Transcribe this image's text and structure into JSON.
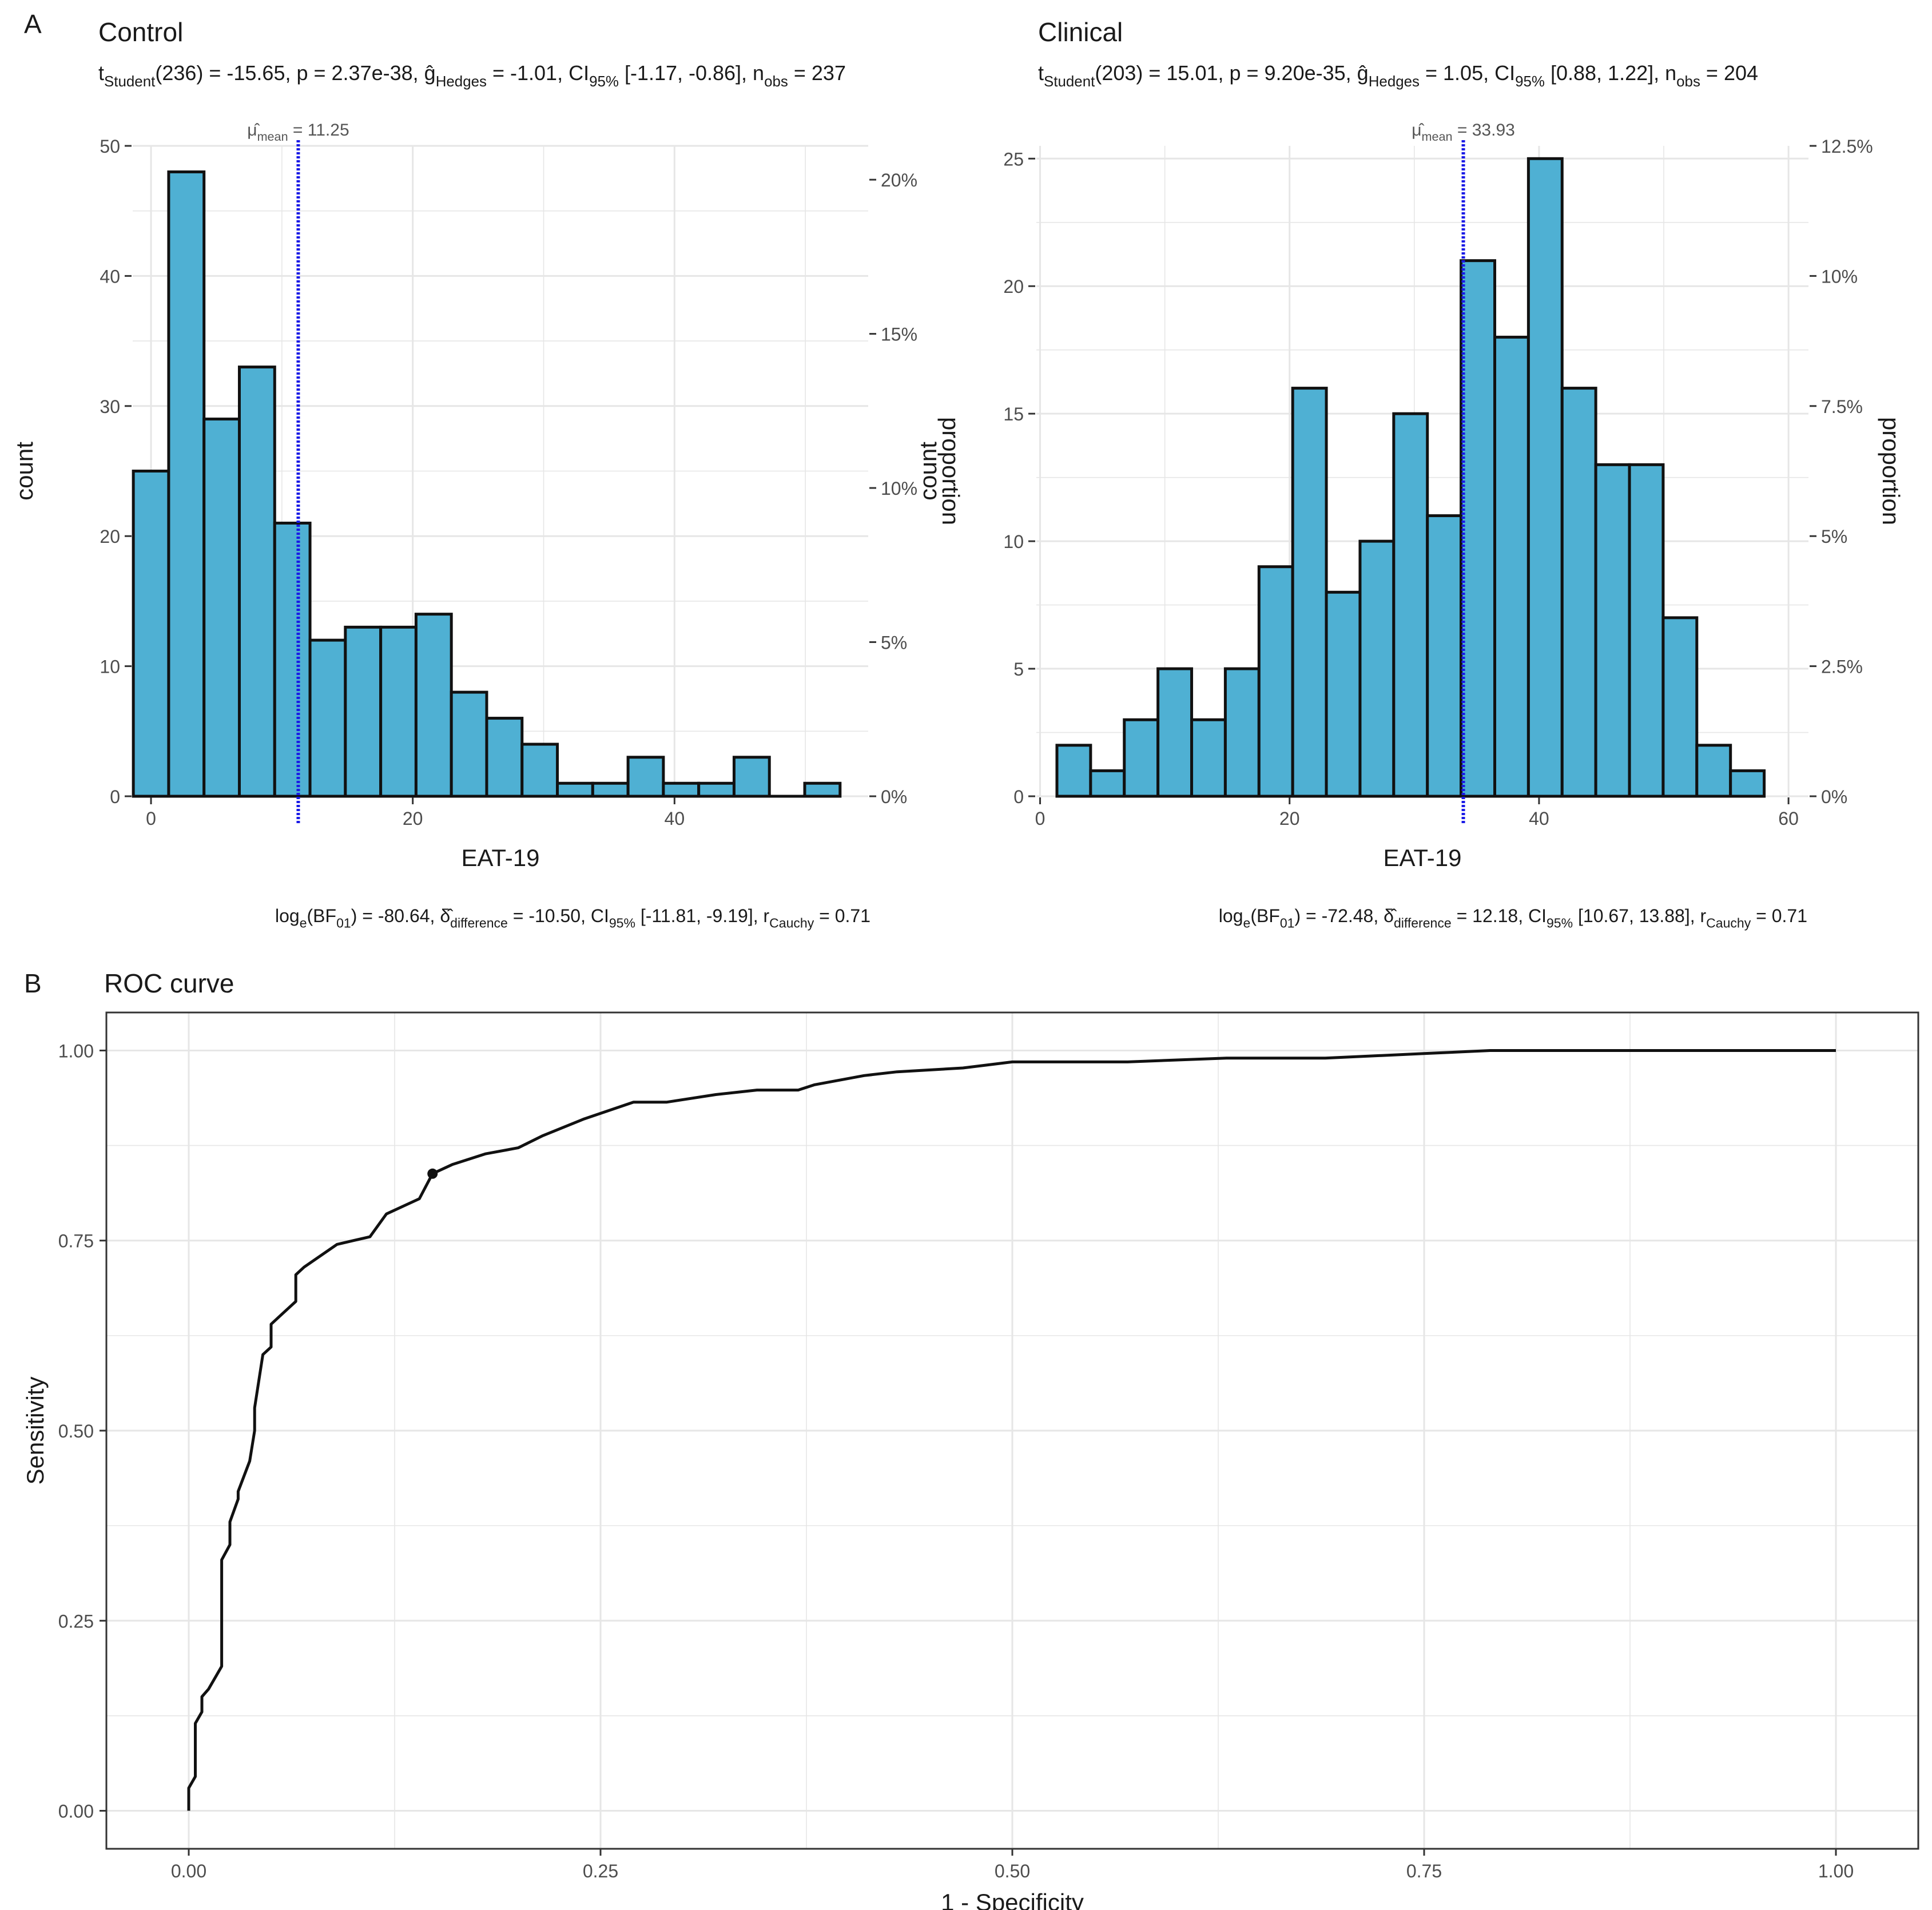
{
  "panel_a_tag": "A",
  "panel_b_tag": "B",
  "colors": {
    "bar_fill": "#4FB0D3",
    "bar_stroke": "#111111",
    "mean_line": "#1A1AE6",
    "grid": "#E6E6E6",
    "line": "#111111"
  },
  "chart_data": [
    {
      "type": "bar",
      "id": "control",
      "title": "Control",
      "subtitle": {
        "t": "Student",
        "df": "236",
        "t_value": "-15.65",
        "p": "2.37e-38",
        "g": "Hedges",
        "g_value": "-1.01",
        "ci": "95%",
        "ci_range": "[-1.17, -0.86]",
        "n": "obs",
        "n_value": "237"
      },
      "mean_label": {
        "sub": "mean",
        "value": "11.25"
      },
      "mean": 11.25,
      "xlabel": "EAT-19",
      "ylabel": "count",
      "y2label": "proportion",
      "xlim": [
        -1.4,
        54.8
      ],
      "ylim": [
        0,
        50
      ],
      "x_ticks": [
        "0",
        "20",
        "40"
      ],
      "x_tick_values": [
        0,
        20,
        40
      ],
      "y_ticks": [
        "0",
        "10",
        "20",
        "30",
        "40",
        "50"
      ],
      "y_tick_values": [
        0,
        10,
        20,
        30,
        40,
        50
      ],
      "y2_ticks": [
        "0%",
        "5%",
        "10%",
        "15%",
        "20%"
      ],
      "y2_tick_values": [
        0,
        0.05,
        0.1,
        0.15,
        0.2
      ],
      "n_total": 237,
      "bin_width": 2.7,
      "bin_centers": [
        0,
        2.7,
        5.4,
        8.1,
        10.8,
        13.5,
        16.2,
        18.9,
        21.6,
        24.3,
        27.0,
        29.7,
        32.4,
        35.1,
        37.8,
        40.5,
        43.2,
        45.9,
        48.6,
        51.3
      ],
      "values": [
        25,
        48,
        29,
        33,
        21,
        12,
        13,
        13,
        14,
        8,
        6,
        4,
        1,
        1,
        3,
        1,
        1,
        3,
        0,
        1
      ],
      "caption": {
        "bf": "-80.64",
        "delta": "-10.50",
        "ci": "[-11.81, -9.19]",
        "r": "0.71"
      }
    },
    {
      "type": "bar",
      "id": "clinical",
      "title": "Clinical",
      "subtitle": {
        "t": "Student",
        "df": "203",
        "t_value": "15.01",
        "p": "9.20e-35",
        "g": "Hedges",
        "g_value": "1.05",
        "ci": "95%",
        "ci_range": "[0.88, 1.22]",
        "n": "obs",
        "n_value": "204"
      },
      "mean_label": {
        "sub": "mean",
        "value": "33.93"
      },
      "mean": 33.93,
      "xlabel": "EAT-19",
      "ylabel": "count",
      "y2label": "proportion",
      "xlim": [
        -0.3,
        61.6
      ],
      "ylim": [
        0,
        25.5
      ],
      "x_ticks": [
        "0",
        "20",
        "40",
        "60"
      ],
      "x_tick_values": [
        0,
        20,
        40,
        60
      ],
      "y_ticks": [
        "0",
        "5",
        "10",
        "15",
        "20",
        "25"
      ],
      "y_tick_values": [
        0,
        5,
        10,
        15,
        20,
        25
      ],
      "y2_ticks": [
        "0%",
        "2.5%",
        "5%",
        "7.5%",
        "10%",
        "12.5%"
      ],
      "y2_tick_values": [
        0,
        0.025,
        0.05,
        0.075,
        0.1,
        0.125
      ],
      "n_total": 204,
      "bin_width": 2.7,
      "bin_centers": [
        2.7,
        5.4,
        8.1,
        10.8,
        13.5,
        16.2,
        18.9,
        21.6,
        24.3,
        27.0,
        29.7,
        32.4,
        35.1,
        37.8,
        40.5,
        43.2,
        45.9,
        48.6,
        51.3,
        54.0,
        56.7
      ],
      "values": [
        2,
        1,
        3,
        5,
        3,
        5,
        9,
        16,
        8,
        10,
        15,
        11,
        21,
        18,
        25,
        16,
        13,
        13,
        7,
        2,
        1
      ],
      "caption": {
        "bf": "-72.48",
        "delta": "12.18",
        "ci": "[10.67, 13.88]",
        "r": "0.71"
      }
    },
    {
      "type": "line",
      "id": "roc",
      "title": "ROC curve",
      "xlabel": "1 - Specificity",
      "ylabel": "Sensitivity",
      "xlim": [
        -0.05,
        1.05
      ],
      "ylim": [
        -0.05,
        1.05
      ],
      "x_ticks": [
        "0.00",
        "0.25",
        "0.50",
        "0.75",
        "1.00"
      ],
      "x_tick_values": [
        0,
        0.25,
        0.5,
        0.75,
        1.0
      ],
      "y_ticks": [
        "0.00",
        "0.25",
        "0.50",
        "0.75",
        "1.00"
      ],
      "y_tick_values": [
        0,
        0.25,
        0.5,
        0.75,
        1.0
      ],
      "x": [
        0.0,
        0.0,
        0.004,
        0.004,
        0.008,
        0.008,
        0.012,
        0.02,
        0.02,
        0.025,
        0.025,
        0.03,
        0.03,
        0.037,
        0.04,
        0.04,
        0.045,
        0.05,
        0.05,
        0.055,
        0.06,
        0.065,
        0.065,
        0.07,
        0.08,
        0.09,
        0.1,
        0.11,
        0.12,
        0.13,
        0.14,
        0.148,
        0.16,
        0.18,
        0.2,
        0.215,
        0.24,
        0.27,
        0.29,
        0.32,
        0.345,
        0.37,
        0.38,
        0.41,
        0.43,
        0.47,
        0.5,
        0.57,
        0.63,
        0.69,
        0.75,
        0.79,
        1.0
      ],
      "y": [
        0.0,
        0.03,
        0.045,
        0.115,
        0.13,
        0.15,
        0.16,
        0.19,
        0.33,
        0.35,
        0.38,
        0.41,
        0.42,
        0.46,
        0.5,
        0.53,
        0.6,
        0.61,
        0.64,
        0.65,
        0.66,
        0.67,
        0.705,
        0.715,
        0.73,
        0.745,
        0.75,
        0.755,
        0.785,
        0.795,
        0.805,
        0.838,
        0.85,
        0.864,
        0.872,
        0.888,
        0.91,
        0.932,
        0.932,
        0.942,
        0.948,
        0.948,
        0.955,
        0.967,
        0.972,
        0.977,
        0.985,
        0.985,
        0.99,
        0.99,
        0.996,
        1.0,
        1.0
      ],
      "highlight_point": {
        "x": 0.148,
        "y": 0.838
      }
    }
  ]
}
